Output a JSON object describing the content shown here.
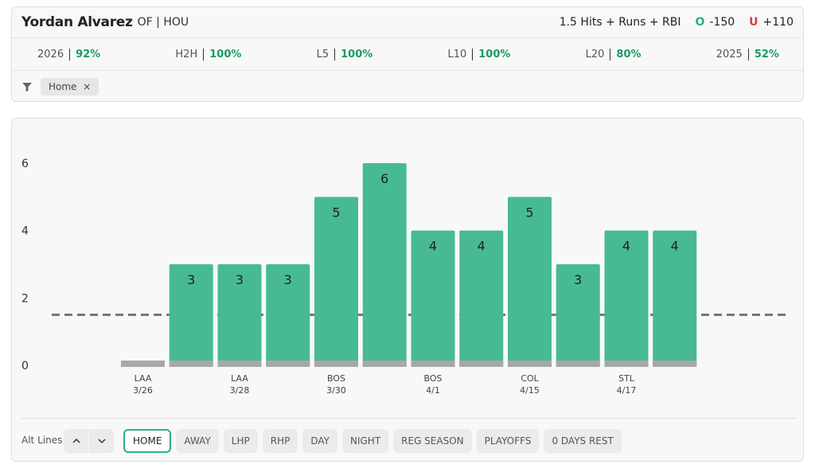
{
  "header": {
    "player": "Yordan Alvarez",
    "position": "OF | HOU",
    "prop": "1.5 Hits + Runs + RBI",
    "over_icon": "O",
    "over_odds": "-150",
    "under_icon": "U",
    "under_odds": "+110"
  },
  "stats": [
    {
      "label": "2026",
      "value": "92%"
    },
    {
      "label": "H2H",
      "value": "100%"
    },
    {
      "label": "L5",
      "value": "100%"
    },
    {
      "label": "L10",
      "value": "100%"
    },
    {
      "label": "L20",
      "value": "80%"
    },
    {
      "label": "2025",
      "value": "52%"
    }
  ],
  "active_filter_chip": "Home",
  "chart_data": {
    "type": "bar",
    "opponents": [
      "LAA",
      null,
      "LAA",
      null,
      "BOS",
      null,
      "BOS",
      null,
      "COL",
      null,
      "STL",
      null
    ],
    "categories": [
      "3/26",
      null,
      "3/28",
      null,
      "3/30",
      null,
      "4/1",
      null,
      "4/15",
      null,
      "4/17",
      null
    ],
    "values": [
      0,
      3,
      3,
      3,
      5,
      6,
      4,
      4,
      5,
      3,
      4,
      4
    ],
    "color": "#47ba94",
    "zero_color": "#a8a8a8",
    "line": 1.5,
    "line_color": "#777",
    "ylim": [
      0,
      6
    ],
    "yticks": [
      0,
      2,
      4,
      6
    ],
    "grid": false
  },
  "alt_lines": "Alt Lines",
  "filters": [
    {
      "label": "HOME",
      "active": true
    },
    {
      "label": "AWAY",
      "active": false
    },
    {
      "label": "LHP",
      "active": false
    },
    {
      "label": "RHP",
      "active": false
    },
    {
      "label": "DAY",
      "active": false
    },
    {
      "label": "NIGHT",
      "active": false
    },
    {
      "label": "REG SEASON",
      "active": false
    },
    {
      "label": "PLAYOFFS",
      "active": false
    },
    {
      "label": "0 DAYS REST",
      "active": false
    }
  ]
}
